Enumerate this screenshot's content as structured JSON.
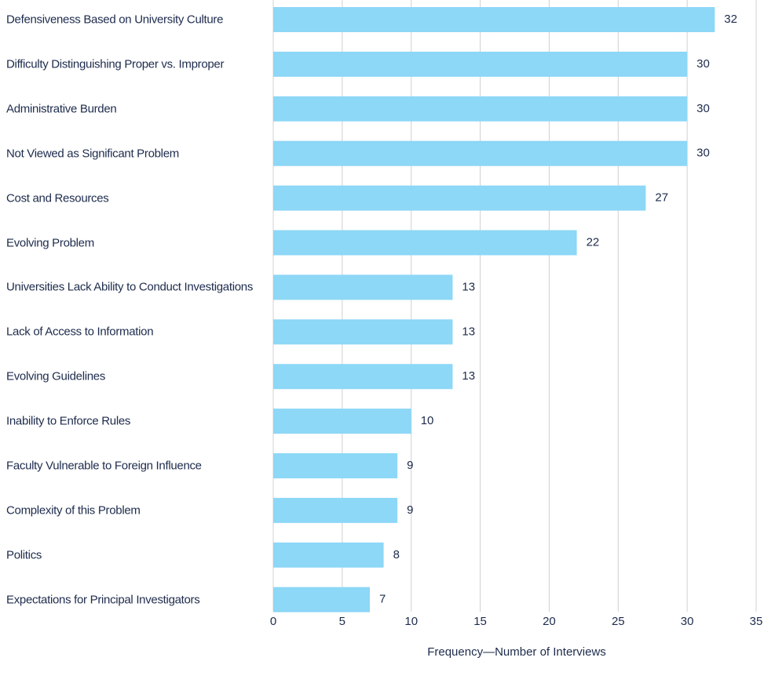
{
  "chart_data": {
    "type": "barh",
    "categories": [
      "Defensiveness Based on University Culture",
      "Difficulty Distinguishing Proper vs. Improper",
      "Administrative Burden",
      "Not Viewed as Significant Problem",
      "Cost and Resources",
      "Evolving Problem",
      "Universities Lack Ability to Conduct Investigations",
      "Lack of Access to Information",
      "Evolving Guidelines",
      "Inability to Enforce Rules",
      "Faculty Vulnerable to Foreign Influence",
      "Complexity of this Problem",
      "Politics",
      "Expectations for Principal Investigators"
    ],
    "values": [
      32,
      30,
      30,
      30,
      27,
      22,
      13,
      13,
      13,
      10,
      9,
      9,
      8,
      7
    ],
    "color": "#8dd7f7",
    "xlim": [
      0,
      35
    ],
    "xticks": [
      0,
      5,
      10,
      15,
      20,
      25,
      30,
      35
    ],
    "xlabel": "Frequency—Number of Interviews",
    "grid": true
  }
}
